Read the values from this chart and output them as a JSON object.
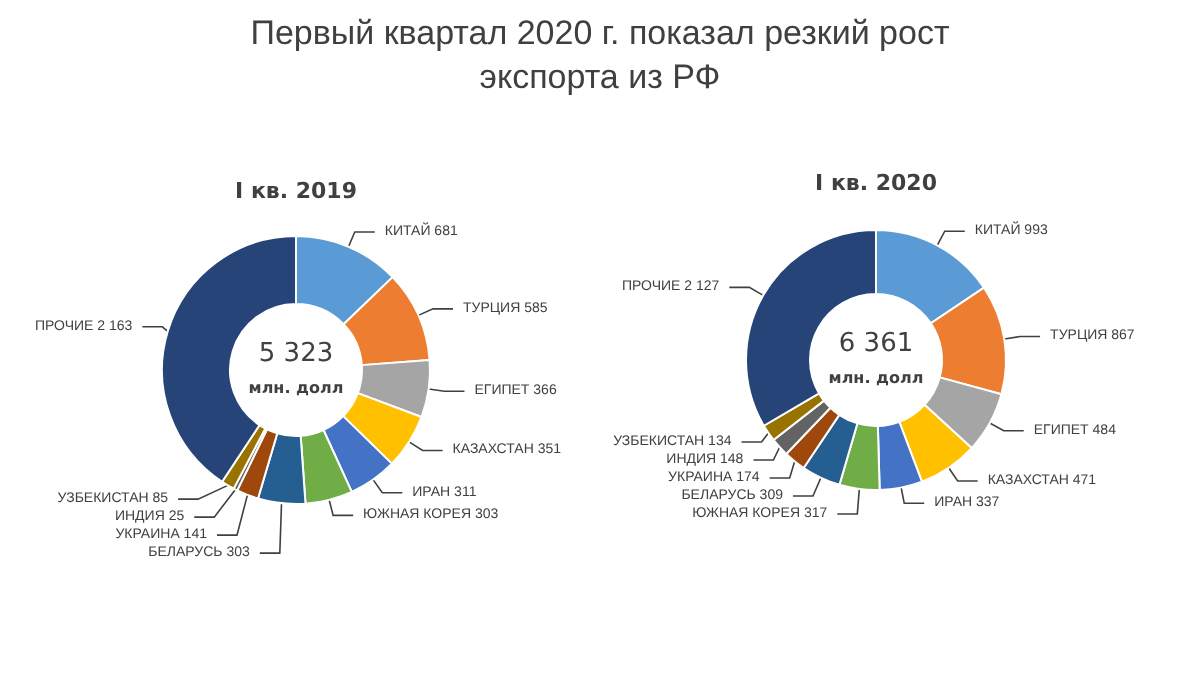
{
  "chart_data": [
    {
      "type": "donut",
      "title": "Первый квартал 2020 г. показал резкий рост экспорта из РФ",
      "subtitle": "I кв. 2019",
      "categories": [
        "КИТАЙ",
        "ТУРЦИЯ",
        "ЕГИПЕТ",
        "КАЗАХСТАН",
        "ИРАН",
        "ЮЖНАЯ КОРЕЯ",
        "БЕЛАРУСЬ",
        "УКРАИНА",
        "ИНДИЯ",
        "УЗБЕКИСТАН",
        "ПРОЧИЕ"
      ],
      "values": [
        681,
        585,
        366,
        351,
        311,
        303,
        303,
        141,
        25,
        85,
        2163
      ],
      "value_labels": [
        "681",
        "585",
        "366",
        "351",
        "311",
        "303",
        "303",
        "141",
        "25",
        "85",
        "2 163"
      ],
      "colors": [
        "#5b9bd5",
        "#ed7d31",
        "#a5a5a5",
        "#ffc000",
        "#4472c4",
        "#70ad47",
        "#255e91",
        "#9e480e",
        "#636363",
        "#997300",
        "#264478"
      ],
      "annotations": [
        "5 323",
        "млн. долл"
      ]
    },
    {
      "type": "donut",
      "subtitle": "I кв. 2020",
      "categories": [
        "КИТАЙ",
        "ТУРЦИЯ",
        "ЕГИПЕТ",
        "КАЗАХСТАН",
        "ИРАН",
        "ЮЖНАЯ КОРЕЯ",
        "БЕЛАРУСЬ",
        "УКРАИНА",
        "ИНДИЯ",
        "УЗБЕКИСТАН",
        "ПРОЧИЕ"
      ],
      "values": [
        993,
        867,
        484,
        471,
        337,
        317,
        309,
        174,
        148,
        134,
        2127
      ],
      "value_labels": [
        "993",
        "867",
        "484",
        "471",
        "337",
        "317",
        "309",
        "174",
        "148",
        "134",
        "2 127"
      ],
      "colors": [
        "#5b9bd5",
        "#ed7d31",
        "#a5a5a5",
        "#ffc000",
        "#4472c4",
        "#70ad47",
        "#255e91",
        "#9e480e",
        "#636363",
        "#997300",
        "#264478"
      ],
      "annotations": [
        "6 361",
        "млн. долл"
      ]
    }
  ]
}
